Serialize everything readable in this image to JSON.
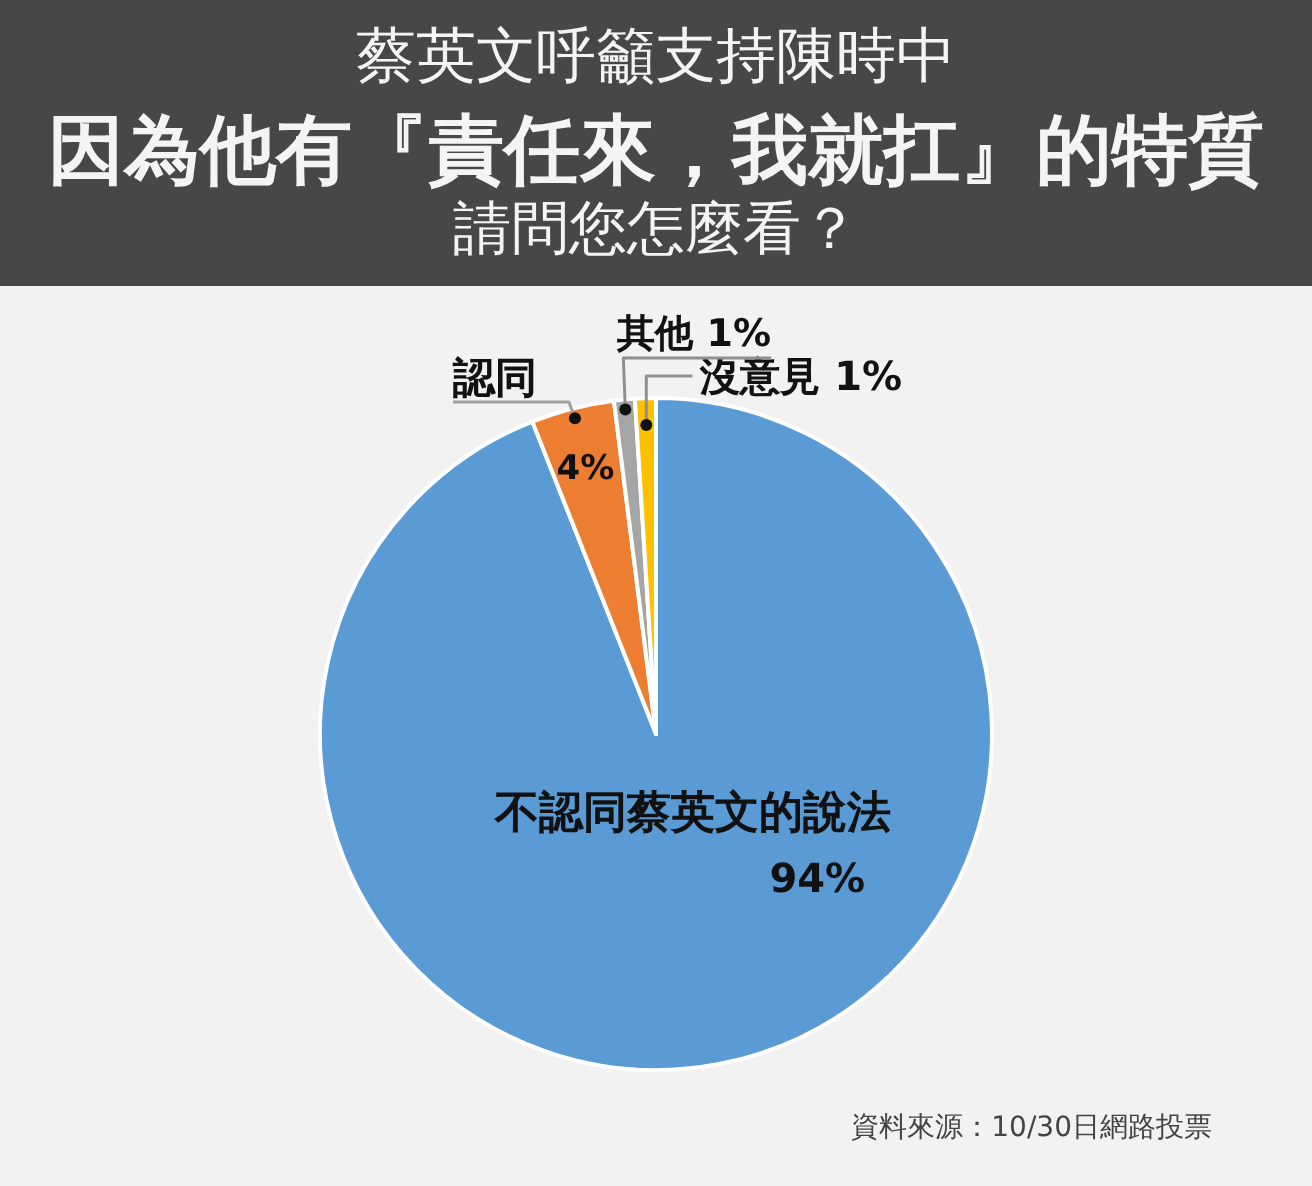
{
  "chart_data": {
    "type": "pie",
    "title": "蔡英文呼籲支持陳時中**因為他有『責任來，我就扛』的特質**",
    "subtitle": "請問您怎麼看？",
    "categories": [
      "不認同蔡英文的說法",
      "認同",
      "其他",
      "沒意見"
    ],
    "values": [
      94,
      4,
      1,
      1
    ],
    "value_labels": [
      "94%",
      "4%",
      "1%",
      "1%"
    ],
    "colors": [
      "#5b9bd5",
      "#ed7d31",
      "#a5a5a5",
      "#ffc000"
    ],
    "annotations": [
      "資料來源：10/30日網路投票"
    ]
  }
}
